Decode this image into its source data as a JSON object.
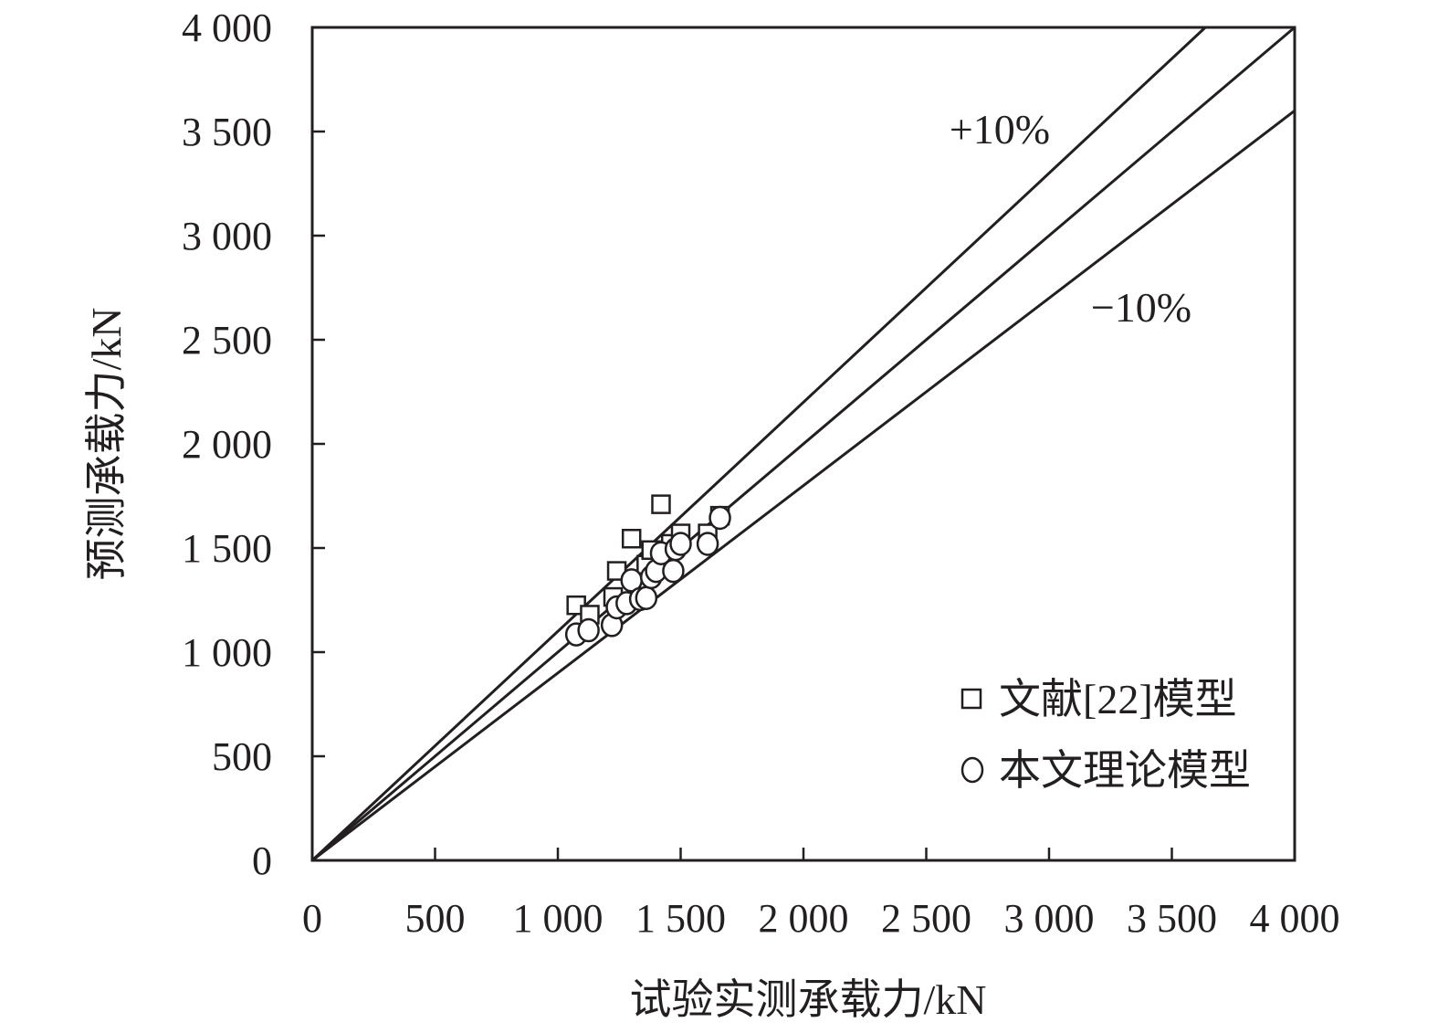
{
  "chart_data": {
    "type": "scatter",
    "xlabel": "试验实测承载力/kN",
    "ylabel": "预测承载力/kN",
    "xlim": [
      0,
      4000
    ],
    "ylim": [
      0,
      4000
    ],
    "x_ticks": [
      0,
      500,
      1000,
      1500,
      2000,
      2500,
      3000,
      3500,
      4000
    ],
    "y_ticks": [
      0,
      500,
      1000,
      1500,
      2000,
      2500,
      3000,
      3500,
      4000
    ],
    "x_tick_labels": [
      "0",
      "500",
      "1 000",
      "1 500",
      "2 000",
      "2 500",
      "3 000",
      "3 500",
      "4 000"
    ],
    "y_tick_labels": [
      "0",
      "500",
      "1 000",
      "1 500",
      "2 000",
      "2 500",
      "3 000",
      "3 500",
      "4 000"
    ],
    "grid": false,
    "legend_position": "bottom-right",
    "reference_lines": [
      {
        "label": "+10%",
        "slope": 1.1
      },
      {
        "label": "",
        "slope": 1.0
      },
      {
        "label": "−10%",
        "slope": 0.9
      }
    ],
    "series": [
      {
        "name": "文献[22]模型",
        "marker": "square",
        "points": [
          [
            1075,
            1225
          ],
          [
            1130,
            1180
          ],
          [
            1225,
            1265
          ],
          [
            1240,
            1390
          ],
          [
            1300,
            1545
          ],
          [
            1320,
            1350
          ],
          [
            1360,
            1420
          ],
          [
            1380,
            1490
          ],
          [
            1420,
            1710
          ],
          [
            1460,
            1520
          ],
          [
            1500,
            1570
          ],
          [
            1610,
            1570
          ],
          [
            1660,
            1655
          ]
        ]
      },
      {
        "name": "本文理论模型",
        "marker": "circle",
        "points": [
          [
            1075,
            1085
          ],
          [
            1125,
            1105
          ],
          [
            1220,
            1130
          ],
          [
            1240,
            1215
          ],
          [
            1280,
            1235
          ],
          [
            1300,
            1345
          ],
          [
            1335,
            1255
          ],
          [
            1360,
            1260
          ],
          [
            1380,
            1360
          ],
          [
            1400,
            1390
          ],
          [
            1420,
            1475
          ],
          [
            1470,
            1390
          ],
          [
            1480,
            1495
          ],
          [
            1500,
            1520
          ],
          [
            1610,
            1520
          ],
          [
            1660,
            1645
          ]
        ]
      }
    ]
  }
}
